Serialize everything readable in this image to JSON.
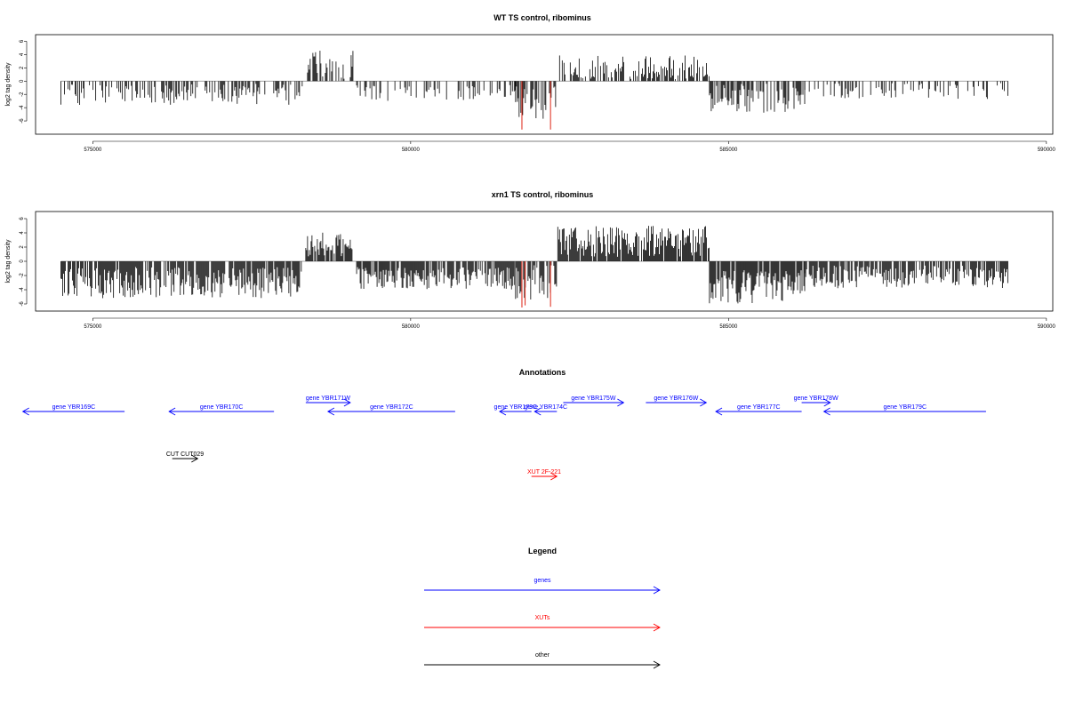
{
  "colors": {
    "signal": "#000000",
    "highlight": "#e0392b",
    "gene": "#0000ff",
    "xut": "#ff0000",
    "other": "#000000",
    "frame": "#000000",
    "baseline": "#888888"
  },
  "chart_data": [
    {
      "type": "bar",
      "title": "WT TS control, ribominus",
      "ylabel": "log2 tag density",
      "xlim": [
        574100,
        590100
      ],
      "ylim": [
        -8,
        7
      ],
      "xticks": [
        575000,
        580000,
        585000,
        590000
      ],
      "yticks": [
        6,
        4,
        2,
        0,
        -2,
        -4,
        -6
      ],
      "data_start": 574500,
      "data_end": 589400,
      "highlight_positions": [
        581750,
        582200
      ],
      "highlight_values": [
        -7.3,
        -7.3
      ],
      "segments": [
        {
          "from": 574500,
          "to": 578300,
          "mean": -2.0,
          "spread": 1.6,
          "density": 0.45
        },
        {
          "from": 578350,
          "to": 579100,
          "mean": 2.4,
          "spread": 2.2,
          "density": 0.55
        },
        {
          "from": 579150,
          "to": 581650,
          "mean": -1.8,
          "spread": 1.2,
          "density": 0.4
        },
        {
          "from": 581650,
          "to": 582300,
          "mean": -3.2,
          "spread": 2.5,
          "density": 0.6
        },
        {
          "from": 582300,
          "to": 584700,
          "mean": 1.9,
          "spread": 2.0,
          "density": 0.55
        },
        {
          "from": 584700,
          "to": 586200,
          "mean": -2.6,
          "spread": 2.2,
          "density": 0.65
        },
        {
          "from": 586200,
          "to": 589400,
          "mean": -1.5,
          "spread": 1.2,
          "density": 0.3
        }
      ]
    },
    {
      "type": "bar",
      "title": "xrn1 TS control, ribominus",
      "ylabel": "log2 tag density",
      "xlim": [
        574100,
        590100
      ],
      "ylim": [
        -7,
        7
      ],
      "xticks": [
        575000,
        580000,
        585000,
        590000
      ],
      "yticks": [
        6,
        4,
        2,
        0,
        -2,
        -4,
        -6
      ],
      "data_start": 574500,
      "data_end": 589400,
      "highlight_positions": [
        581750,
        581800,
        582200
      ],
      "highlight_values": [
        -6.5,
        -6.2,
        -6.4
      ],
      "segments": [
        {
          "from": 574500,
          "to": 578300,
          "mean": -3.0,
          "spread": 2.2,
          "density": 0.85
        },
        {
          "from": 578350,
          "to": 579100,
          "mean": 2.4,
          "spread": 1.8,
          "density": 0.85
        },
        {
          "from": 579150,
          "to": 581650,
          "mean": -2.4,
          "spread": 1.6,
          "density": 0.8
        },
        {
          "from": 581650,
          "to": 582300,
          "mean": -3.0,
          "spread": 2.6,
          "density": 0.85
        },
        {
          "from": 582300,
          "to": 584700,
          "mean": 2.8,
          "spread": 2.2,
          "density": 0.95
        },
        {
          "from": 584700,
          "to": 586200,
          "mean": -3.6,
          "spread": 2.4,
          "density": 0.95
        },
        {
          "from": 586200,
          "to": 589400,
          "mean": -2.2,
          "spread": 1.6,
          "density": 0.75
        }
      ]
    }
  ],
  "annotations": {
    "title": "Annotations",
    "genes": [
      {
        "label": "gene YBR169C",
        "start": 575500,
        "end": 573900,
        "row": 0
      },
      {
        "label": "gene YBR170C",
        "start": 577850,
        "end": 576200,
        "row": 0
      },
      {
        "label": "gene YBR171W",
        "start": 578350,
        "end": 579050,
        "row": 1
      },
      {
        "label": "gene YBR172C",
        "start": 580700,
        "end": 578700,
        "row": 0
      },
      {
        "label": "gene YBR173C",
        "start": 581900,
        "end": 581400,
        "row": 0
      },
      {
        "label": "gene YBR174C",
        "start": 582300,
        "end": 581950,
        "row": 0
      },
      {
        "label": "gene YBR175W",
        "start": 582400,
        "end": 583350,
        "row": 1
      },
      {
        "label": "gene YBR176W",
        "start": 583700,
        "end": 584650,
        "row": 1
      },
      {
        "label": "gene YBR177C",
        "start": 586150,
        "end": 584800,
        "row": 0
      },
      {
        "label": "gene YBR178W",
        "start": 586150,
        "end": 586600,
        "row": 1
      },
      {
        "label": "gene YBR179C",
        "start": 589050,
        "end": 586500,
        "row": 0
      }
    ],
    "others": [
      {
        "label": "CUT CUT029",
        "start": 576250,
        "end": 576650
      }
    ],
    "xuts": [
      {
        "label": "XUT 2F-221",
        "start": 581900,
        "end": 582300
      }
    ]
  },
  "legend": {
    "title": "Legend",
    "items": [
      {
        "label": "genes",
        "color_key": "gene"
      },
      {
        "label": "XUTs",
        "color_key": "xut"
      },
      {
        "label": "other",
        "color_key": "other"
      }
    ]
  }
}
